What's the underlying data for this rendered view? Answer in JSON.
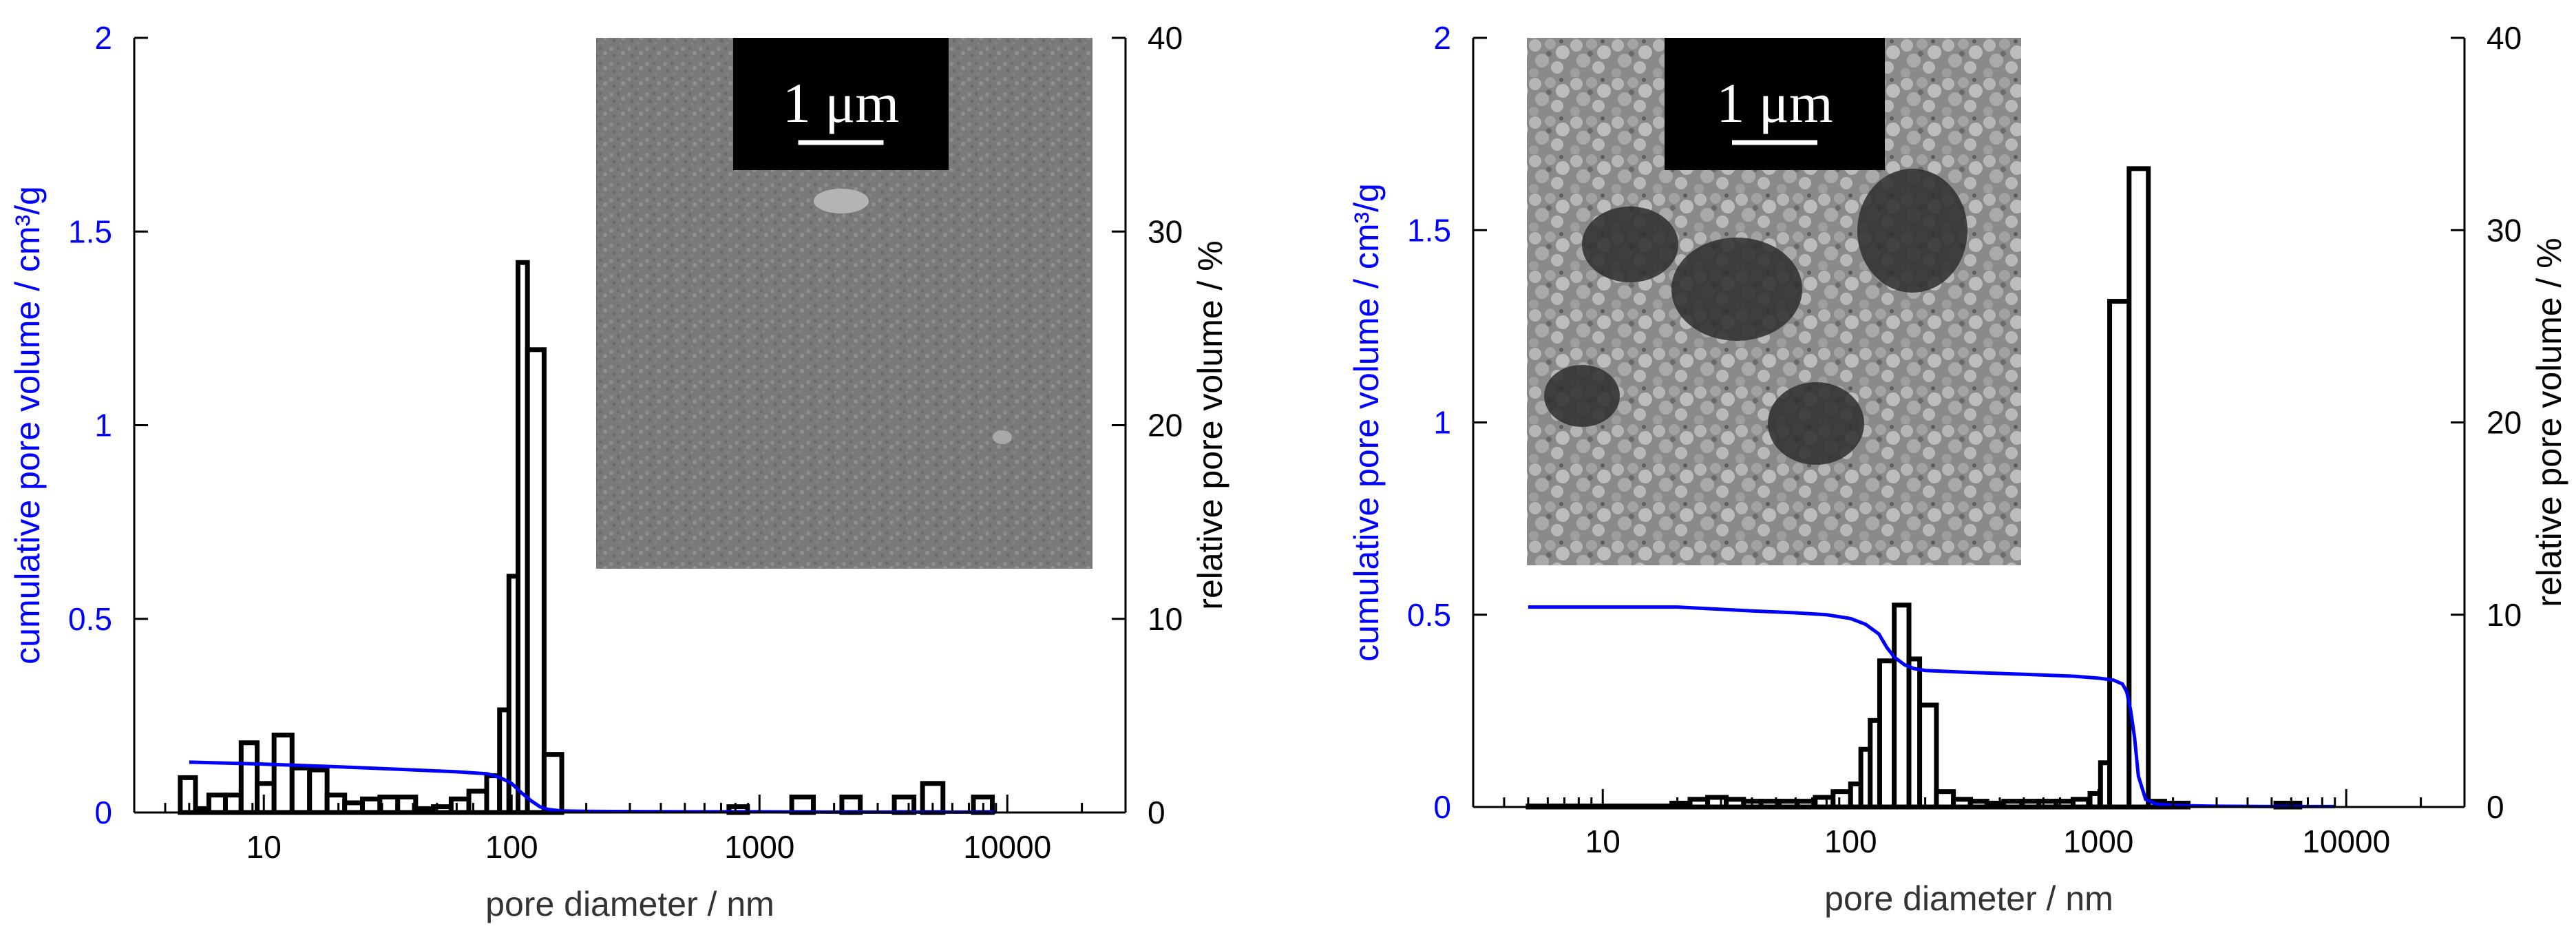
{
  "chart_data": [
    {
      "type": "bar",
      "panel": "left",
      "xlabel": "pore diameter / nm",
      "ylabel": "cumulative pore volume / cm³/g",
      "y2label": "relative pore volume / %",
      "x_scale": "log",
      "xlim": [
        3,
        30000
      ],
      "ylim": [
        0,
        2
      ],
      "y2lim": [
        0,
        40
      ],
      "x_ticks": [
        10,
        100,
        1000,
        10000
      ],
      "x_tick_labels": [
        "10",
        "100",
        "1000",
        "10000"
      ],
      "y_ticks": [
        0,
        0.5,
        1,
        1.5,
        2
      ],
      "y_tick_labels": [
        "0",
        "0.5",
        "1",
        "1.5",
        "2"
      ],
      "y2_ticks": [
        0,
        10,
        20,
        30,
        40
      ],
      "y2_tick_labels": [
        "0",
        "10",
        "20",
        "30",
        "40"
      ],
      "grid": false,
      "legend": "none",
      "colors": {
        "cumulative": "#0000ff",
        "bars": "#000000",
        "axis_left": "#0000ff",
        "axis_right": "#000000"
      },
      "series": [
        {
          "kind": "bar",
          "axis": "right",
          "bins": [
            {
              "x0": 4.6,
              "x1": 5.3,
              "value": 1.8
            },
            {
              "x0": 5.3,
              "x1": 6.0,
              "value": 0.2
            },
            {
              "x0": 6.0,
              "x1": 7.0,
              "value": 0.9
            },
            {
              "x0": 7.0,
              "x1": 8.1,
              "value": 0.9
            },
            {
              "x0": 8.1,
              "x1": 9.4,
              "value": 3.6
            },
            {
              "x0": 9.4,
              "x1": 11.0,
              "value": 1.5
            },
            {
              "x0": 11.0,
              "x1": 13.0,
              "value": 4.0
            },
            {
              "x0": 13.0,
              "x1": 15.3,
              "value": 2.3
            },
            {
              "x0": 15.3,
              "x1": 18.0,
              "value": 2.2
            },
            {
              "x0": 18.0,
              "x1": 21.2,
              "value": 0.9
            },
            {
              "x0": 21.2,
              "x1": 25.0,
              "value": 0.5
            },
            {
              "x0": 25.0,
              "x1": 29.4,
              "value": 0.7
            },
            {
              "x0": 29.4,
              "x1": 34.7,
              "value": 0.8
            },
            {
              "x0": 34.7,
              "x1": 41.0,
              "value": 0.8
            },
            {
              "x0": 41.0,
              "x1": 48.3,
              "value": 0.2
            },
            {
              "x0": 48.3,
              "x1": 57.0,
              "value": 0.3
            },
            {
              "x0": 57.0,
              "x1": 67.2,
              "value": 0.7
            },
            {
              "x0": 67.2,
              "x1": 79.3,
              "value": 1.1
            },
            {
              "x0": 79.3,
              "x1": 89.4,
              "value": 1.9
            },
            {
              "x0": 89.4,
              "x1": 97.5,
              "value": 5.3
            },
            {
              "x0": 97.5,
              "x1": 106.1,
              "value": 12.2
            },
            {
              "x0": 106.1,
              "x1": 115.8,
              "value": 28.4
            },
            {
              "x0": 115.8,
              "x1": 135.2,
              "value": 23.9
            },
            {
              "x0": 135.2,
              "x1": 159.3,
              "value": 3.0
            },
            {
              "x0": 753,
              "x1": 895,
              "value": 0.3
            },
            {
              "x0": 1350,
              "x1": 1650,
              "value": 0.8
            },
            {
              "x0": 2150,
              "x1": 2550,
              "value": 0.8
            },
            {
              "x0": 3500,
              "x1": 4200,
              "value": 0.8
            },
            {
              "x0": 4550,
              "x1": 5500,
              "value": 1.5
            },
            {
              "x0": 7300,
              "x1": 8700,
              "value": 0.8
            }
          ]
        },
        {
          "kind": "line",
          "axis": "left",
          "x": [
            5,
            10,
            20,
            40,
            60,
            80,
            90,
            100,
            110,
            120,
            130,
            140,
            160,
            200,
            500,
            1000,
            2000,
            5000,
            9000
          ],
          "y": [
            0.13,
            0.125,
            0.118,
            0.11,
            0.105,
            0.1,
            0.09,
            0.075,
            0.05,
            0.03,
            0.015,
            0.008,
            0.004,
            0.003,
            0.002,
            0.002,
            0.001,
            0.001,
            0.001
          ]
        }
      ],
      "inset": {
        "scale_label": "1 μm"
      }
    },
    {
      "type": "bar",
      "panel": "right",
      "xlabel": "pore diameter / nm",
      "ylabel": "cumulative pore volume / cm³/g",
      "y2label": "relative pore volume / %",
      "x_scale": "log",
      "xlim": [
        3,
        30000
      ],
      "ylim": [
        0,
        2
      ],
      "y2lim": [
        0,
        40
      ],
      "x_ticks": [
        10,
        100,
        1000,
        10000
      ],
      "x_tick_labels": [
        "10",
        "100",
        "1000",
        "10000"
      ],
      "y_ticks": [
        0,
        0.5,
        1,
        1.5,
        2
      ],
      "y_tick_labels": [
        "0",
        "0.5",
        "1",
        "1.5",
        "2"
      ],
      "y2_ticks": [
        0,
        10,
        20,
        30,
        40
      ],
      "y2_tick_labels": [
        "0",
        "10",
        "20",
        "30",
        "40"
      ],
      "grid": false,
      "legend": "none",
      "colors": {
        "cumulative": "#0000ff",
        "bars": "#000000",
        "axis_left": "#0000ff",
        "axis_right": "#000000"
      },
      "series": [
        {
          "kind": "bar",
          "axis": "right",
          "bins": [
            {
              "x0": 5.0,
              "x1": 19.0,
              "value": 0.05
            },
            {
              "x0": 19.0,
              "x1": 22.5,
              "value": 0.2
            },
            {
              "x0": 22.5,
              "x1": 26.5,
              "value": 0.4
            },
            {
              "x0": 26.5,
              "x1": 31.5,
              "value": 0.5
            },
            {
              "x0": 31.5,
              "x1": 37.0,
              "value": 0.4
            },
            {
              "x0": 37.0,
              "x1": 43.5,
              "value": 0.3
            },
            {
              "x0": 43.5,
              "x1": 51.5,
              "value": 0.3
            },
            {
              "x0": 51.5,
              "x1": 61.0,
              "value": 0.3
            },
            {
              "x0": 61.0,
              "x1": 72.0,
              "value": 0.3
            },
            {
              "x0": 72.0,
              "x1": 85.0,
              "value": 0.5
            },
            {
              "x0": 85.0,
              "x1": 100.0,
              "value": 0.8
            },
            {
              "x0": 100.0,
              "x1": 110.0,
              "value": 1.2
            },
            {
              "x0": 110.0,
              "x1": 120.0,
              "value": 3.0
            },
            {
              "x0": 120.0,
              "x1": 131.0,
              "value": 4.5
            },
            {
              "x0": 131.0,
              "x1": 150.0,
              "value": 7.6
            },
            {
              "x0": 150.0,
              "x1": 172.0,
              "value": 10.5
            },
            {
              "x0": 172.0,
              "x1": 190.0,
              "value": 7.7
            },
            {
              "x0": 190.0,
              "x1": 222.0,
              "value": 5.3
            },
            {
              "x0": 222.0,
              "x1": 260.0,
              "value": 0.8
            },
            {
              "x0": 260.0,
              "x1": 305.0,
              "value": 0.4
            },
            {
              "x0": 305.0,
              "x1": 355.0,
              "value": 0.3
            },
            {
              "x0": 355.0,
              "x1": 415.0,
              "value": 0.2
            },
            {
              "x0": 415.0,
              "x1": 490.0,
              "value": 0.3
            },
            {
              "x0": 490.0,
              "x1": 575.0,
              "value": 0.3
            },
            {
              "x0": 575.0,
              "x1": 675.0,
              "value": 0.3
            },
            {
              "x0": 675.0,
              "x1": 790.0,
              "value": 0.3
            },
            {
              "x0": 790.0,
              "x1": 925.0,
              "value": 0.4
            },
            {
              "x0": 925.0,
              "x1": 1020.0,
              "value": 0.7
            },
            {
              "x0": 1020.0,
              "x1": 1110.0,
              "value": 2.3
            },
            {
              "x0": 1110.0,
              "x1": 1330.0,
              "value": 26.3
            },
            {
              "x0": 1330.0,
              "x1": 1590.0,
              "value": 33.2
            },
            {
              "x0": 1590.0,
              "x1": 1850.0,
              "value": 0.3
            },
            {
              "x0": 1850.0,
              "x1": 2300.0,
              "value": 0.2
            },
            {
              "x0": 5200.0,
              "x1": 6500.0,
              "value": 0.2
            }
          ]
        },
        {
          "kind": "line",
          "axis": "left",
          "x": [
            5,
            10,
            20,
            40,
            60,
            80,
            100,
            115,
            130,
            140,
            150,
            165,
            180,
            200,
            300,
            500,
            800,
            1000,
            1150,
            1250,
            1300,
            1350,
            1400,
            1450,
            1550,
            1700,
            2000,
            3000,
            5000,
            9000
          ],
          "y": [
            0.52,
            0.52,
            0.52,
            0.51,
            0.505,
            0.5,
            0.49,
            0.475,
            0.45,
            0.415,
            0.39,
            0.37,
            0.36,
            0.355,
            0.35,
            0.345,
            0.34,
            0.335,
            0.33,
            0.32,
            0.3,
            0.25,
            0.18,
            0.08,
            0.02,
            0.008,
            0.004,
            0.002,
            0.001,
            0.001
          ]
        }
      ],
      "inset": {
        "scale_label": "1 μm"
      }
    }
  ]
}
